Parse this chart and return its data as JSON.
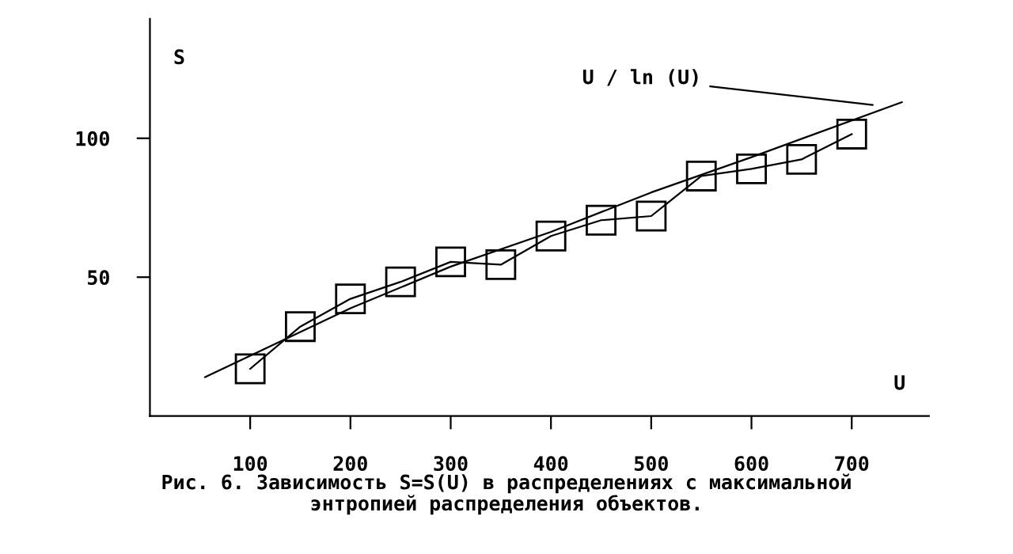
{
  "chart_data": {
    "type": "line",
    "xlabel": "U",
    "ylabel": "S",
    "xlim": [
      0,
      777
    ],
    "ylim": [
      0,
      143
    ],
    "xticks": [
      100,
      200,
      300,
      400,
      500,
      600,
      700
    ],
    "yticks": [
      50,
      100
    ],
    "grid": false,
    "legend": false,
    "series": [
      {
        "color": "#000000",
        "marker": "square",
        "line_style": "solid",
        "x": [
          100,
          150,
          200,
          250,
          300,
          350,
          400,
          450,
          500,
          550,
          600,
          650,
          700
        ],
        "values": [
          17.0,
          32.2,
          42.2,
          48.3,
          55.5,
          54.5,
          64.8,
          70.5,
          72.0,
          86.4,
          89.0,
          92.4,
          101.5
        ]
      },
      {
        "color": "#000000",
        "marker": "none",
        "line_style": "solid",
        "x": [
          55,
          200,
          300,
          400,
          500,
          600,
          750
        ],
        "values": [
          14,
          38.8,
          53.8,
          66.3,
          80.5,
          93.2,
          113
        ]
      }
    ],
    "annotations": [
      {
        "text": "U / ln (U)",
        "x": 721,
        "y": 112
      },
      "Рис. 6. Зависимость S=S(U) в распределениях с максимальной\nэнтропией распределения объектов."
    ]
  }
}
